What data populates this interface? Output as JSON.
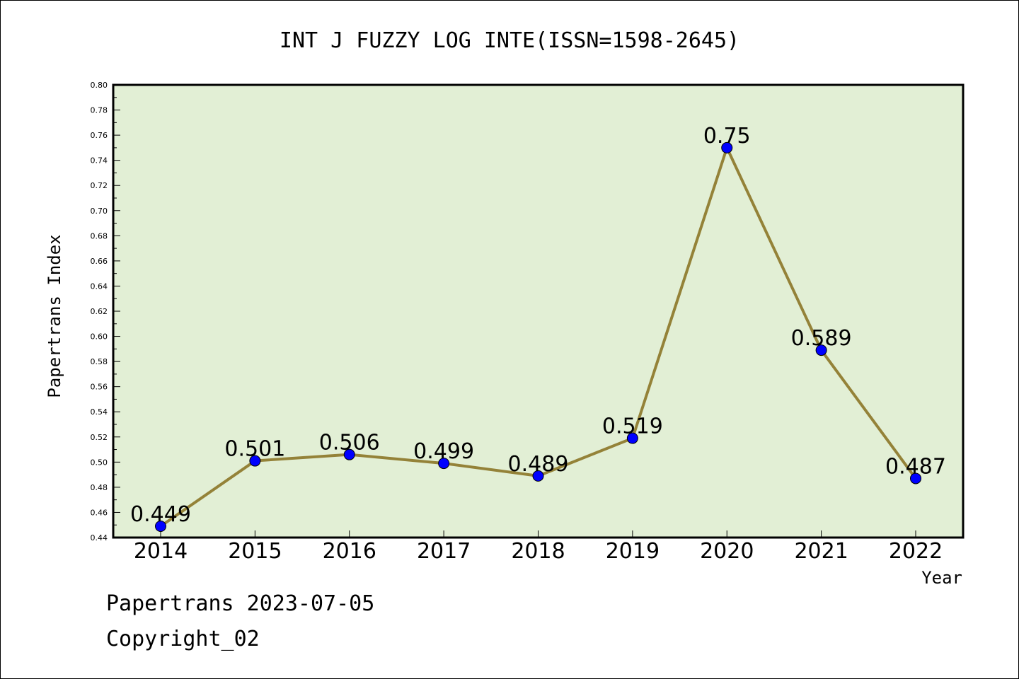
{
  "chart_data": {
    "type": "line",
    "title": "INT J FUZZY LOG INTE(ISSN=1598-2645)",
    "xlabel": "Year",
    "ylabel": "Papertrans Index",
    "categories": [
      "2014",
      "2015",
      "2016",
      "2017",
      "2018",
      "2019",
      "2020",
      "2021",
      "2022"
    ],
    "values": [
      0.449,
      0.501,
      0.506,
      0.499,
      0.489,
      0.519,
      0.75,
      0.589,
      0.487
    ],
    "data_labels": [
      "0.449",
      "0.501",
      "0.506",
      "0.499",
      "0.489",
      "0.519",
      "0.75",
      "0.589",
      "0.487"
    ],
    "ylim": [
      0.44,
      0.8
    ],
    "yticks": [
      "0.44",
      "0.46",
      "0.48",
      "0.50",
      "0.52",
      "0.54",
      "0.56",
      "0.58",
      "0.60",
      "0.62",
      "0.64",
      "0.66",
      "0.68",
      "0.70",
      "0.72",
      "0.74",
      "0.76",
      "0.78",
      "0.80"
    ],
    "grid": false,
    "colors": {
      "plot_background": "#e2efd5",
      "line": "#948238",
      "marker": "#0000ff"
    }
  },
  "footer": {
    "line1": "Papertrans 2023-07-05",
    "line2": "Copyright_02"
  }
}
